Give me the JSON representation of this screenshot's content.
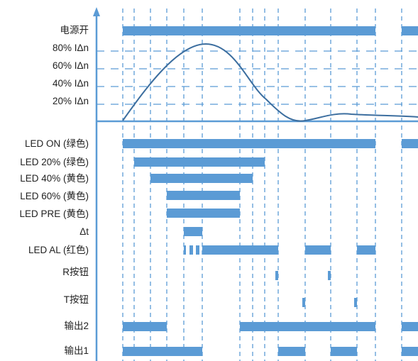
{
  "colors": {
    "bar": "#5B9BD5",
    "line": "#3C6E9F",
    "grid": "#5B9BD5",
    "text": "#222222"
  },
  "power_label": "电源开",
  "current_labels": [
    "80% IΔn",
    "60% IΔn",
    "40% IΔn",
    "20% IΔn"
  ],
  "signal_labels": [
    "LED ON (绿色)",
    "LED 20% (绿色)",
    "LED 40% (黄色)",
    "LED 60% (黄色)",
    "LED PRE (黄色)",
    "Δt",
    "LED AL (红色)",
    "R按钮",
    "T按钮",
    "输出2",
    "输出1"
  ]
}
